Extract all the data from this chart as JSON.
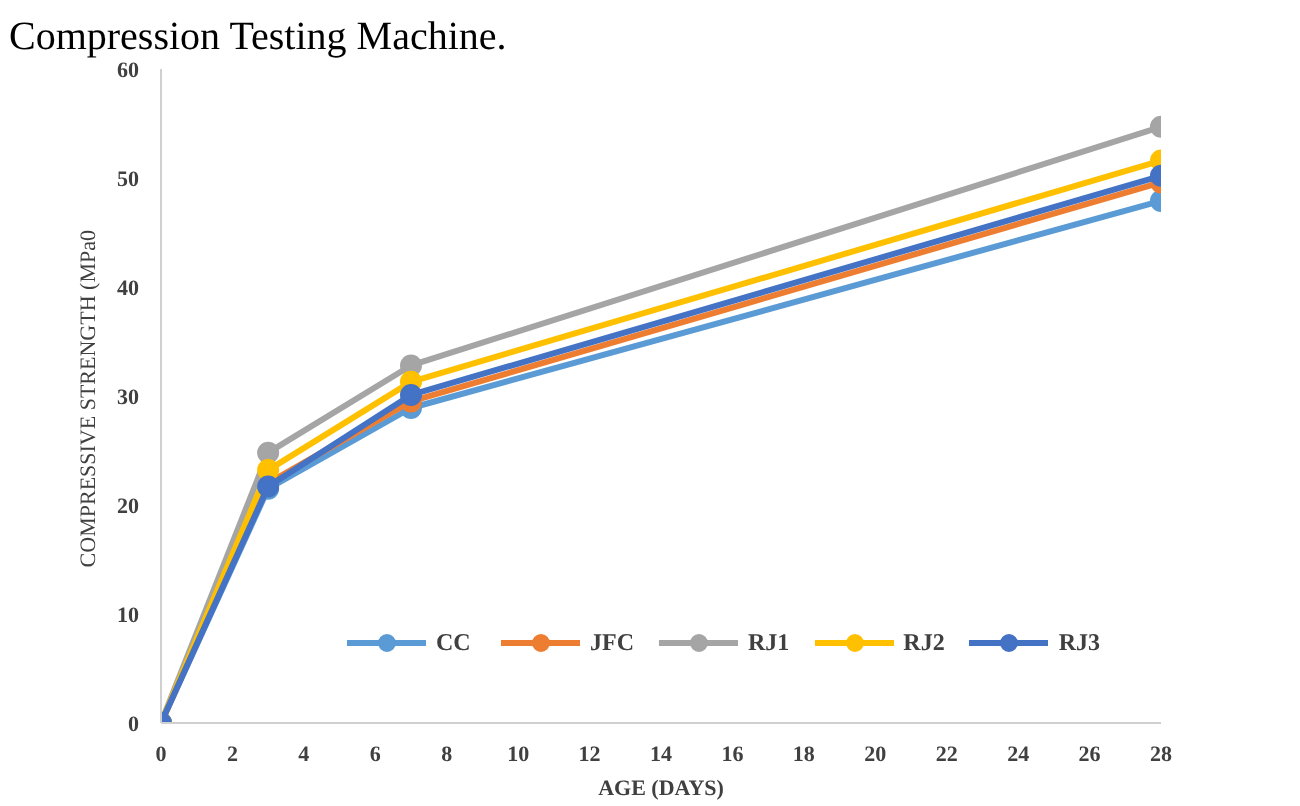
{
  "chart_data": {
    "type": "line",
    "xlabel": "AGE (DAYS)",
    "ylabel": "COMPRESSIVE STRENGTH  (MPa0",
    "annotations": [
      "Compression Testing Machine."
    ],
    "x": [
      0,
      3,
      7,
      28
    ],
    "series": [
      {
        "name": "CC",
        "color": "#5b9bd5",
        "values": [
          0,
          21.5,
          28.9,
          47.9
        ]
      },
      {
        "name": "JFC",
        "color": "#ed7d31",
        "values": [
          0,
          22,
          29.5,
          49.6
        ]
      },
      {
        "name": "RJ1",
        "color": "#a5a5a5",
        "values": [
          0,
          24.8,
          32.8,
          54.7
        ]
      },
      {
        "name": "RJ2",
        "color": "#ffc000",
        "values": [
          0,
          23.2,
          31.3,
          51.6
        ]
      },
      {
        "name": "RJ3",
        "color": "#4472c4",
        "values": [
          0,
          21.7,
          30.1,
          50.2
        ]
      }
    ],
    "xlim": [
      0,
      28
    ],
    "xticks": [
      0,
      2,
      4,
      6,
      8,
      10,
      12,
      14,
      16,
      18,
      20,
      22,
      24,
      26,
      28
    ],
    "ylim": [
      0,
      60
    ],
    "yticks": [
      0,
      10,
      20,
      30,
      40,
      50,
      60
    ],
    "grid": false,
    "legend": "bottom right",
    "marker": "circle",
    "line_style": "solid"
  }
}
